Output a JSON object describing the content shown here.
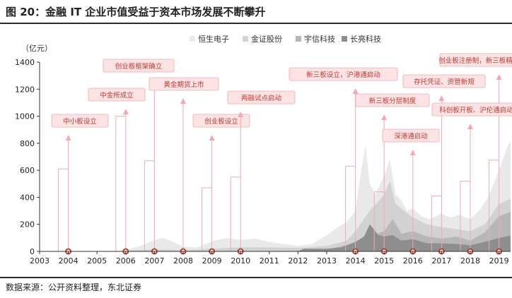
{
  "figure": {
    "title": "图 20：金融 IT 企业市值受益于资本市场发展不断攀升",
    "source": "数据来源：公开资料整理，东北证券"
  },
  "chart_data": {
    "type": "area",
    "title": "",
    "ylabel": "（亿元）",
    "xlabel": "",
    "ylim": [
      0,
      1400
    ],
    "yticks": [
      0,
      200,
      400,
      600,
      800,
      1000,
      1200,
      1400
    ],
    "xlim": [
      2003,
      2019.5
    ],
    "xticks": [
      2003,
      2004,
      2005,
      2006,
      2007,
      2008,
      2009,
      2010,
      2011,
      2012,
      2013,
      2014,
      2015,
      2016,
      2017,
      2018,
      2019
    ],
    "legend_position": "top",
    "grid": false,
    "series": [
      {
        "name": "恒生电子",
        "color": "#e9e9e9",
        "x": [
          2003,
          2005.9,
          2006,
          2006.5,
          2007,
          2007.3,
          2007.6,
          2008,
          2008.5,
          2009,
          2009.5,
          2010,
          2010.5,
          2011,
          2011.5,
          2012,
          2012.5,
          2013,
          2013.4,
          2013.7,
          2014,
          2014.2,
          2014.35,
          2014.5,
          2014.7,
          2015,
          2015.2,
          2015.4,
          2015.6,
          2015.8,
          2016,
          2016.3,
          2016.6,
          2017,
          2017.3,
          2017.6,
          2018,
          2018.3,
          2018.6,
          2019,
          2019.3,
          2019.5
        ],
        "y": [
          0,
          0,
          10,
          40,
          85,
          100,
          75,
          35,
          30,
          75,
          100,
          85,
          95,
          70,
          55,
          40,
          55,
          120,
          180,
          220,
          300,
          600,
          780,
          500,
          420,
          560,
          680,
          420,
          380,
          300,
          320,
          260,
          240,
          280,
          250,
          270,
          240,
          300,
          390,
          600,
          780,
          850
        ]
      },
      {
        "name": "金证股份",
        "color": "#d2d2d2",
        "x": [
          2003,
          2005.9,
          2006,
          2007,
          2008,
          2009,
          2010,
          2011,
          2012,
          2013,
          2013.7,
          2014,
          2014.5,
          2015,
          2015.2,
          2015.4,
          2016,
          2016.5,
          2017,
          2018,
          2018.5,
          2019,
          2019.5
        ],
        "y": [
          0,
          0,
          5,
          15,
          10,
          20,
          30,
          30,
          25,
          40,
          80,
          150,
          300,
          420,
          520,
          350,
          250,
          200,
          180,
          150,
          200,
          350,
          400
        ]
      },
      {
        "name": "宇信科技",
        "color": "#b7b7b7",
        "x": [
          2012,
          2013,
          2014,
          2014.5,
          2015,
          2015.3,
          2015.6,
          2016,
          2016.5,
          2017,
          2017.5,
          2018,
          2018.5,
          2019,
          2019.5
        ],
        "y": [
          0,
          15,
          60,
          110,
          150,
          240,
          130,
          150,
          110,
          95,
          110,
          80,
          140,
          260,
          300
        ]
      },
      {
        "name": "长亮科技",
        "color": "#8e8e8e",
        "x": [
          2012,
          2012.2,
          2013,
          2013.5,
          2014,
          2014.3,
          2014.5,
          2014.8,
          2015,
          2015.3,
          2015.6,
          2016,
          2016.5,
          2017,
          2017.5,
          2018,
          2018.5,
          2019,
          2019.5
        ],
        "y": [
          0,
          20,
          20,
          30,
          70,
          110,
          200,
          120,
          110,
          120,
          80,
          90,
          60,
          60,
          55,
          45,
          70,
          100,
          120
        ]
      }
    ],
    "events": [
      {
        "label": "中小板设立",
        "year": 2004
      },
      {
        "label": "中金所成立",
        "year": 2006
      },
      {
        "label": "创业板框架确立",
        "year": 2007
      },
      {
        "label": "黄金期货上市",
        "year": 2008
      },
      {
        "label": "创业板设立",
        "year": 2009
      },
      {
        "label": "两融试点启动",
        "year": 2010
      },
      {
        "label": "新三板设立，沪港通启动",
        "year": 2014
      },
      {
        "label": "新三板分层制度",
        "year": 2015
      },
      {
        "label": "深港通启动",
        "year": 2016
      },
      {
        "label": "存托凭证、资管新规",
        "year": 2017
      },
      {
        "label": "创业板注册制，新三板精选层",
        "year": 2019
      },
      {
        "label": "科创板开板、沪伦通启动",
        "year": 2018
      }
    ]
  }
}
